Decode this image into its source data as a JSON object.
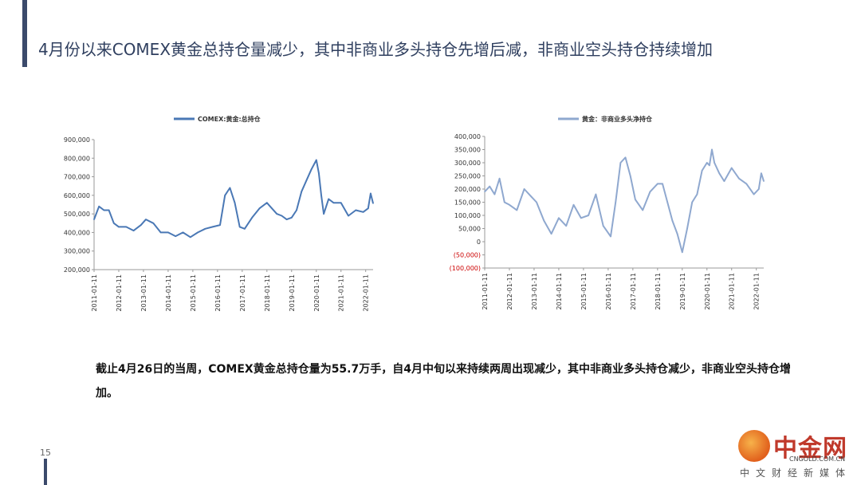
{
  "page": {
    "headline": "4月份以来COMEX黄金总持仓量减少，其中非商业多头持仓先增后减，非商业空头持仓持续增加",
    "summary": "截止4月26日的当周，COMEX黄金总持仓量为55.7万手，自4月中旬以来持续两周出现减少，其中非商业多头持仓减少，非商业空头持仓增加。",
    "page_number": "15"
  },
  "logo": {
    "name": "中金网",
    "domain": "CNGOLD.COM.CN",
    "tagline": "中文财经新媒体"
  },
  "colors": {
    "left_series": "#4a78b5",
    "right_series": "#8fa8cf",
    "negative_tick": "#cc0000"
  },
  "chart_data": [
    {
      "type": "line",
      "legend": "COMEX:黄金:总持仓",
      "ylim": [
        200000,
        900000
      ],
      "yticks": [
        "900,000",
        "800,000",
        "700,000",
        "600,000",
        "500,000",
        "400,000",
        "300,000",
        "200,000"
      ],
      "xticks": [
        "2011-01-11",
        "2012-01-11",
        "2013-01-11",
        "2014-01-11",
        "2015-01-11",
        "2016-01-11",
        "2017-01-11",
        "2018-01-11",
        "2019-01-11",
        "2020-01-11",
        "2021-01-11",
        "2022-01-11"
      ],
      "x": [
        2011.0,
        2011.2,
        2011.4,
        2011.6,
        2011.8,
        2012.0,
        2012.3,
        2012.6,
        2012.9,
        2013.1,
        2013.4,
        2013.7,
        2014.0,
        2014.3,
        2014.6,
        2014.9,
        2015.2,
        2015.5,
        2015.8,
        2016.1,
        2016.3,
        2016.5,
        2016.7,
        2016.9,
        2017.1,
        2017.4,
        2017.7,
        2018.0,
        2018.2,
        2018.4,
        2018.6,
        2018.8,
        2019.0,
        2019.2,
        2019.4,
        2019.6,
        2019.8,
        2020.0,
        2020.1,
        2020.2,
        2020.3,
        2020.5,
        2020.7,
        2021.0,
        2021.3,
        2021.6,
        2021.9,
        2022.1,
        2022.2,
        2022.3
      ],
      "values": [
        470000,
        540000,
        520000,
        520000,
        450000,
        430000,
        430000,
        410000,
        440000,
        470000,
        450000,
        400000,
        400000,
        380000,
        400000,
        375000,
        400000,
        420000,
        430000,
        440000,
        600000,
        640000,
        560000,
        430000,
        420000,
        480000,
        530000,
        560000,
        530000,
        500000,
        490000,
        470000,
        480000,
        520000,
        620000,
        680000,
        740000,
        790000,
        720000,
        600000,
        500000,
        580000,
        560000,
        560000,
        490000,
        520000,
        510000,
        530000,
        610000,
        557000
      ]
    },
    {
      "type": "line",
      "legend": "黄金：非商业多头净持仓",
      "ylim": [
        -100000,
        400000
      ],
      "yticks": [
        "400,000",
        "350,000",
        "300,000",
        "250,000",
        "200,000",
        "150,000",
        "100,000",
        "50,000",
        "0",
        "(50,000)",
        "(100,000)"
      ],
      "xticks": [
        "2011-01-11",
        "2012-01-11",
        "2013-01-11",
        "2014-01-11",
        "2015-01-11",
        "2016-01-11",
        "2017-01-11",
        "2018-01-11",
        "2019-01-11",
        "2020-01-11",
        "2021-01-11",
        "2022-01-11"
      ],
      "x": [
        2011.0,
        2011.2,
        2011.4,
        2011.6,
        2011.8,
        2012.0,
        2012.3,
        2012.6,
        2012.9,
        2013.1,
        2013.4,
        2013.7,
        2014.0,
        2014.3,
        2014.6,
        2014.9,
        2015.2,
        2015.5,
        2015.8,
        2016.1,
        2016.3,
        2016.5,
        2016.7,
        2016.9,
        2017.1,
        2017.4,
        2017.7,
        2018.0,
        2018.2,
        2018.4,
        2018.6,
        2018.8,
        2019.0,
        2019.2,
        2019.4,
        2019.6,
        2019.8,
        2020.0,
        2020.1,
        2020.2,
        2020.3,
        2020.5,
        2020.7,
        2021.0,
        2021.3,
        2021.6,
        2021.9,
        2022.1,
        2022.2,
        2022.3
      ],
      "values": [
        190000,
        210000,
        180000,
        240000,
        150000,
        140000,
        120000,
        200000,
        170000,
        150000,
        80000,
        30000,
        90000,
        60000,
        140000,
        90000,
        100000,
        180000,
        60000,
        20000,
        150000,
        300000,
        320000,
        250000,
        160000,
        120000,
        190000,
        220000,
        220000,
        150000,
        80000,
        30000,
        -40000,
        50000,
        150000,
        180000,
        270000,
        300000,
        290000,
        350000,
        300000,
        260000,
        230000,
        280000,
        240000,
        220000,
        180000,
        200000,
        260000,
        230000
      ]
    }
  ]
}
